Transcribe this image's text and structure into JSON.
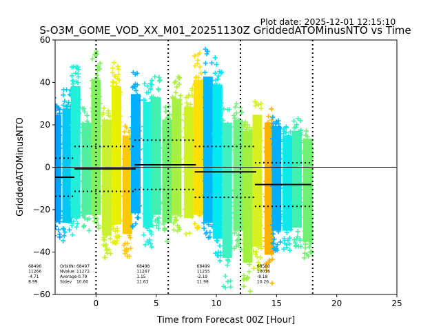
{
  "plot_date": "Plot date: 2025-12-01 12:15:10",
  "chart_data": {
    "type": "scatter",
    "title": "S-O3M_GOME_VOD_XX_M01_20251130Z GriddedATOMinusNTO vs Time",
    "xlabel": "Time from Forecast 00Z [Hour]",
    "ylabel": "GriddedATOMinusNTO",
    "xlim": [
      -3.4,
      25
    ],
    "ylim": [
      -60,
      60
    ],
    "xticks": [
      0,
      5,
      10,
      15,
      20,
      25
    ],
    "yticks": [
      -60,
      -40,
      -20,
      0,
      20,
      40,
      60
    ],
    "vlines_dotted": [
      0,
      6,
      12,
      18
    ],
    "hline": 0,
    "stats_labels": [
      "OrbitNr",
      "NValue",
      "Average",
      "Stdev"
    ],
    "orbits": [
      {
        "orbit": "68496",
        "n": "11266",
        "avg": -4.71,
        "std": 8.99,
        "avg_text": "-4.71",
        "std_text": "8.99",
        "x_start": -5.8,
        "x_end": -1.8
      },
      {
        "orbit": "68497",
        "n": "11272",
        "avg": -0.79,
        "std": 10.6,
        "avg_text": "-0.79",
        "std_text": "10.60",
        "x_start": -1.8,
        "x_end": 3.3
      },
      {
        "orbit": "68498",
        "n": "11267",
        "avg": 1.15,
        "std": 11.63,
        "avg_text": "1.15",
        "std_text": "11.63",
        "x_start": 3.2,
        "x_end": 8.3
      },
      {
        "orbit": "68499",
        "n": "11255",
        "avg": -2.19,
        "std": 11.98,
        "avg_text": "-2.19",
        "std_text": "11.98",
        "x_start": 8.2,
        "x_end": 13.3
      },
      {
        "orbit": "68500",
        "n": "10016",
        "avg": -8.18,
        "std": 10.26,
        "avg_text": "-8.18",
        "std_text": "10.26",
        "x_start": 13.2,
        "x_end": 17.9
      }
    ],
    "point_bands": [
      {
        "x": -3.3,
        "ymin": -33,
        "ymax": 33,
        "color": "#00a0ff"
      },
      {
        "x": -2.4,
        "ymin": -35,
        "ymax": 37,
        "color": "#00c8f0"
      },
      {
        "x": -1.7,
        "ymin": -32,
        "ymax": 51,
        "color": "#20f0d8"
      },
      {
        "x": -0.8,
        "ymin": -30,
        "ymax": 28,
        "color": "#50f0a0"
      },
      {
        "x": 0.0,
        "ymin": -30,
        "ymax": 55,
        "color": "#80f060"
      },
      {
        "x": 0.9,
        "ymin": -43,
        "ymax": 30,
        "color": "#c8f030"
      },
      {
        "x": 1.7,
        "ymin": -36,
        "ymax": 51,
        "color": "#e8f000"
      },
      {
        "x": 2.6,
        "ymin": -42,
        "ymax": 20,
        "color": "#ffc800"
      },
      {
        "x": 3.3,
        "ymin": -29,
        "ymax": 46,
        "color": "#00b0ff"
      },
      {
        "x": 4.3,
        "ymin": -38,
        "ymax": 41,
        "color": "#20f0e0"
      },
      {
        "x": 5.0,
        "ymin": -30,
        "ymax": 44,
        "color": "#40f0b0"
      },
      {
        "x": 5.9,
        "ymin": -35,
        "ymax": 30,
        "color": "#70f070"
      },
      {
        "x": 6.7,
        "ymin": -30,
        "ymax": 43,
        "color": "#a8f040"
      },
      {
        "x": 7.7,
        "ymin": -32,
        "ymax": 38,
        "color": "#d0f020"
      },
      {
        "x": 8.5,
        "ymin": -30,
        "ymax": 55,
        "color": "#ffe000"
      },
      {
        "x": 9.3,
        "ymin": -35,
        "ymax": 57,
        "color": "#00b8ff"
      },
      {
        "x": 10.1,
        "ymin": -45,
        "ymax": 52,
        "color": "#00e8f0"
      },
      {
        "x": 10.9,
        "ymin": -57,
        "ymax": 28,
        "color": "#40f0c0"
      },
      {
        "x": 11.8,
        "ymin": -40,
        "ymax": 30,
        "color": "#70f080"
      },
      {
        "x": 12.6,
        "ymin": -60,
        "ymax": 23,
        "color": "#a0f040"
      },
      {
        "x": 13.4,
        "ymin": -50,
        "ymax": 33,
        "color": "#d8f020"
      },
      {
        "x": 14.4,
        "ymin": -55,
        "ymax": 28,
        "color": "#ffb000"
      },
      {
        "x": 15.0,
        "ymin": -40,
        "ymax": 26,
        "color": "#00b0ff"
      },
      {
        "x": 15.9,
        "ymin": -40,
        "ymax": 20,
        "color": "#10e8e8"
      },
      {
        "x": 16.7,
        "ymin": -38,
        "ymax": 23,
        "color": "#40f0b0"
      },
      {
        "x": 17.6,
        "ymin": -47,
        "ymax": 18,
        "color": "#70f070"
      }
    ]
  }
}
